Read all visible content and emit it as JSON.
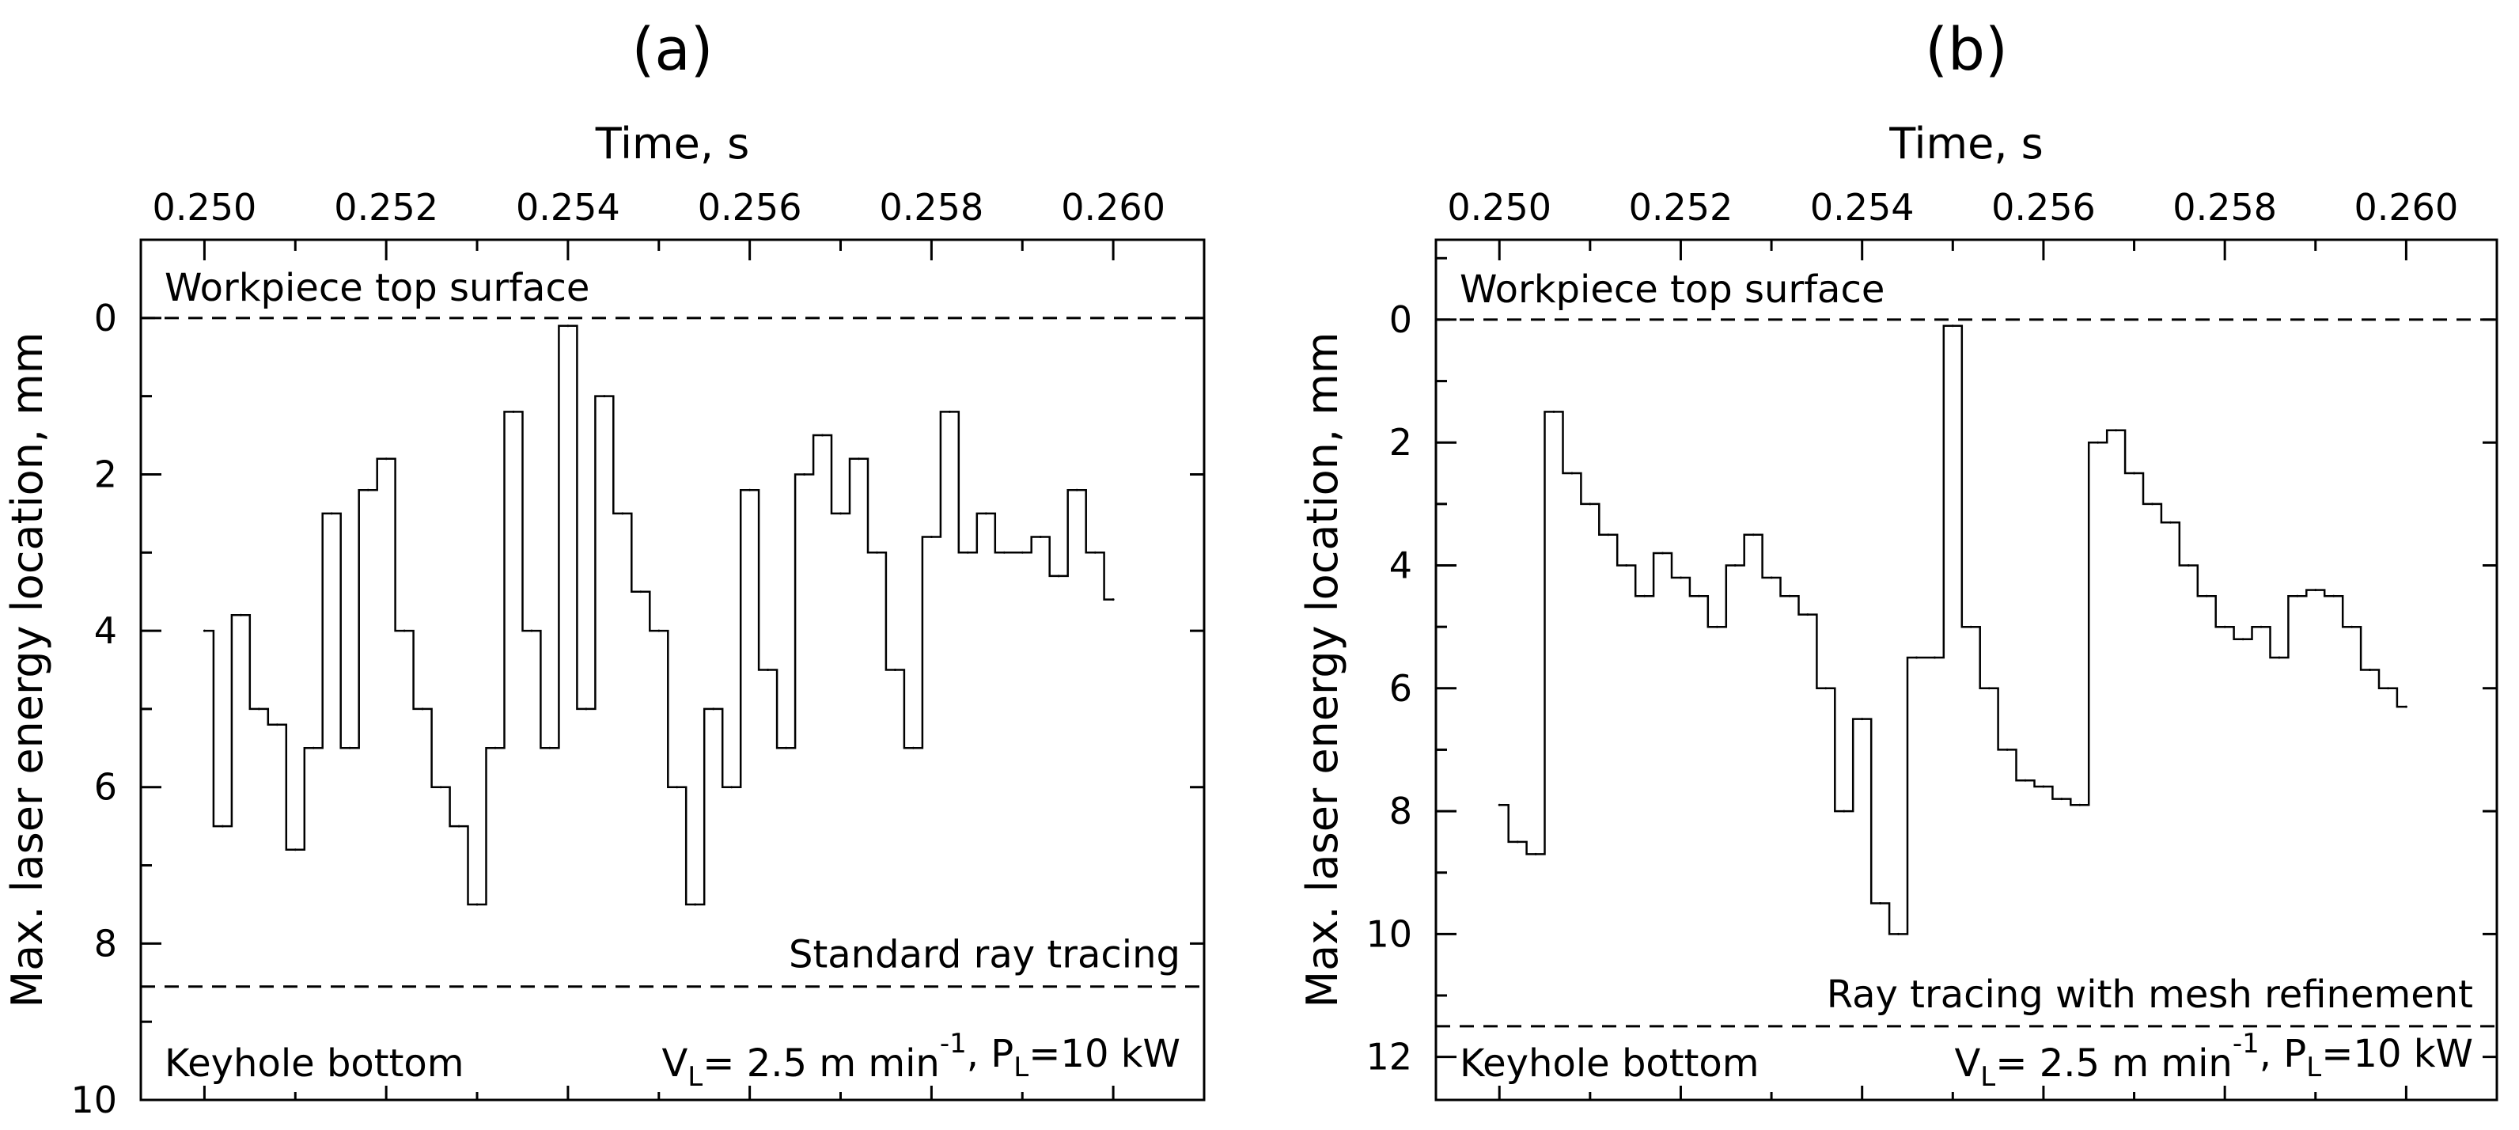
{
  "chart_data": [
    {
      "type": "line",
      "panel_label": "(a)",
      "xlabel": "Time, s",
      "ylabel": "Max. laser energy location, mm",
      "xlim": [
        0.2493,
        0.261
      ],
      "ylim": [
        10,
        -1
      ],
      "x_ticks": [
        "0.250",
        "0.252",
        "0.254",
        "0.256",
        "0.258",
        "0.260"
      ],
      "y_ticks": [
        "0",
        "2",
        "4",
        "6",
        "8",
        "10"
      ],
      "reference_lines": [
        {
          "name": "workpiece-top",
          "y": 0,
          "label": "Workpiece top surface"
        },
        {
          "name": "keyhole-bottom",
          "y": 8.55,
          "label": "Keyhole bottom"
        }
      ],
      "method_label": "Standard ray tracing",
      "params": {
        "v_sym": "V",
        "v_sub": "L",
        "v_text": "= 2.5 m min",
        "v_sup": "-1",
        "sep": ", ",
        "p_sym": "P",
        "p_sub": "L",
        "p_text": "=10 kW"
      },
      "series": {
        "name": "Standard ray tracing",
        "x": [
          0.25,
          0.2502,
          0.2504,
          0.2506,
          0.2508,
          0.251,
          0.2512,
          0.2514,
          0.2516,
          0.2518,
          0.252,
          0.2522,
          0.2524,
          0.2526,
          0.2528,
          0.253,
          0.2532,
          0.2534,
          0.2536,
          0.2538,
          0.254,
          0.2542,
          0.2544,
          0.2546,
          0.2548,
          0.255,
          0.2552,
          0.2554,
          0.2556,
          0.2558,
          0.256,
          0.2562,
          0.2564,
          0.2566,
          0.2568,
          0.257,
          0.2572,
          0.2574,
          0.2576,
          0.2578,
          0.258,
          0.2582,
          0.2584,
          0.2586,
          0.2588,
          0.259,
          0.2592,
          0.2594,
          0.2596,
          0.2598,
          0.26
        ],
        "y": [
          4.0,
          6.5,
          3.8,
          5.0,
          5.2,
          6.8,
          5.5,
          2.5,
          5.5,
          2.2,
          1.8,
          4.0,
          5.0,
          6.0,
          6.5,
          7.5,
          5.5,
          1.2,
          4.0,
          5.5,
          0.1,
          5.0,
          1.0,
          2.5,
          3.5,
          4.0,
          6.0,
          7.5,
          5.0,
          6.0,
          2.2,
          4.5,
          5.5,
          2.0,
          1.5,
          2.5,
          1.8,
          3.0,
          4.5,
          5.5,
          2.8,
          1.2,
          3.0,
          2.5,
          3.0,
          3.0,
          2.8,
          3.3,
          2.2,
          3.0,
          3.6
        ]
      }
    },
    {
      "type": "line",
      "panel_label": "(b)",
      "xlabel": "Time, s",
      "ylabel": "Max. laser energy location, mm",
      "xlim": [
        0.2493,
        0.261
      ],
      "ylim": [
        12.7,
        -1.3
      ],
      "x_ticks": [
        "0.250",
        "0.252",
        "0.254",
        "0.256",
        "0.258",
        "0.260"
      ],
      "y_ticks": [
        "0",
        "2",
        "4",
        "6",
        "8",
        "10",
        "12"
      ],
      "reference_lines": [
        {
          "name": "workpiece-top",
          "y": 0,
          "label": "Workpiece top surface"
        },
        {
          "name": "keyhole-bottom",
          "y": 11.5,
          "label": "Keyhole bottom"
        }
      ],
      "method_label": "Ray tracing with mesh refinement",
      "params": {
        "v_sym": "V",
        "v_sub": "L",
        "v_text": "= 2.5 m min",
        "v_sup": "-1",
        "sep": ", ",
        "p_sym": "P",
        "p_sub": "L",
        "p_text": "=10 kW"
      },
      "series": {
        "name": "Ray tracing with mesh refinement",
        "x": [
          0.25,
          0.2502,
          0.2504,
          0.2506,
          0.2508,
          0.251,
          0.2512,
          0.2514,
          0.2516,
          0.2518,
          0.252,
          0.2522,
          0.2524,
          0.2526,
          0.2528,
          0.253,
          0.2532,
          0.2534,
          0.2536,
          0.2538,
          0.254,
          0.2542,
          0.2544,
          0.2546,
          0.2548,
          0.255,
          0.2552,
          0.2554,
          0.2556,
          0.2558,
          0.256,
          0.2562,
          0.2564,
          0.2566,
          0.2568,
          0.257,
          0.2572,
          0.2574,
          0.2576,
          0.2578,
          0.258,
          0.2582,
          0.2584,
          0.2586,
          0.2588,
          0.259,
          0.2592,
          0.2594,
          0.2596,
          0.2598,
          0.26
        ],
        "y": [
          7.9,
          8.5,
          8.7,
          1.5,
          2.5,
          3.0,
          3.5,
          4.0,
          4.5,
          3.8,
          4.2,
          4.5,
          5.0,
          4.0,
          3.5,
          4.2,
          4.5,
          4.8,
          6.0,
          8.0,
          6.5,
          9.5,
          10.0,
          5.5,
          5.5,
          0.1,
          5.0,
          6.0,
          7.0,
          7.5,
          7.6,
          7.8,
          7.9,
          2.0,
          1.8,
          2.5,
          3.0,
          3.3,
          4.0,
          4.5,
          5.0,
          5.2,
          5.0,
          5.5,
          4.5,
          4.4,
          4.5,
          5.0,
          5.7,
          6.0,
          6.3
        ]
      }
    }
  ]
}
